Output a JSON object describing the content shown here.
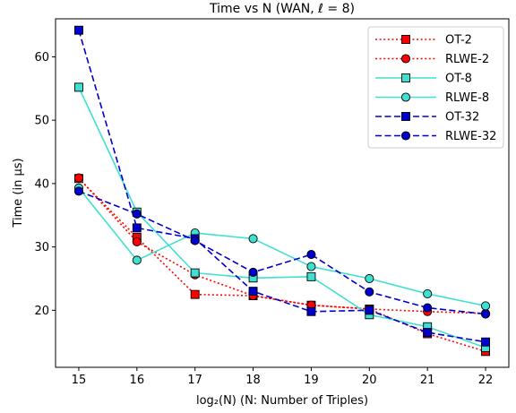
{
  "chart_data": {
    "type": "line",
    "title": "Time vs N (WAN, ℓ = 8)",
    "xlabel": "log₂(N) (N: Number of Triples)",
    "ylabel": "Time (in μs)",
    "x": [
      15,
      16,
      17,
      18,
      19,
      20,
      21,
      22
    ],
    "xlim": [
      14.6,
      22.4
    ],
    "ylim": [
      11,
      66
    ],
    "xticks": [
      15,
      16,
      17,
      18,
      19,
      20,
      21,
      22
    ],
    "yticks": [
      20,
      30,
      40,
      50,
      60
    ],
    "grid": false,
    "legend_position": "top-right",
    "series": [
      {
        "name": "OT-2",
        "color": "#ff0000",
        "marker": "square",
        "dash": "dotted",
        "values": [
          40.8,
          31.5,
          22.5,
          22.3,
          20.8,
          20.2,
          16.3,
          13.5
        ]
      },
      {
        "name": "RLWE-2",
        "color": "#ff0000",
        "marker": "circle",
        "dash": "dotted",
        "values": [
          40.9,
          30.8,
          25.6,
          22.3,
          20.8,
          20.2,
          19.8,
          19.5
        ]
      },
      {
        "name": "OT-8",
        "color": "#40e0d0",
        "marker": "square",
        "dash": "solid",
        "values": [
          55.2,
          35.5,
          25.9,
          25.1,
          25.3,
          19.3,
          17.4,
          14.1
        ]
      },
      {
        "name": "RLWE-8",
        "color": "#40e0d0",
        "marker": "circle",
        "dash": "solid",
        "values": [
          39.3,
          27.9,
          32.2,
          31.3,
          26.9,
          25.0,
          22.6,
          20.7
        ]
      },
      {
        "name": "OT-32",
        "color": "#0000cd",
        "marker": "square",
        "dash": "dashed",
        "values": [
          64.2,
          33.0,
          31.3,
          23.0,
          19.8,
          20.0,
          16.5,
          15.0
        ]
      },
      {
        "name": "RLWE-32",
        "color": "#0000cd",
        "marker": "circle",
        "dash": "dashed",
        "values": [
          38.8,
          35.2,
          31.0,
          26.0,
          28.8,
          22.9,
          20.4,
          19.4
        ]
      }
    ]
  }
}
